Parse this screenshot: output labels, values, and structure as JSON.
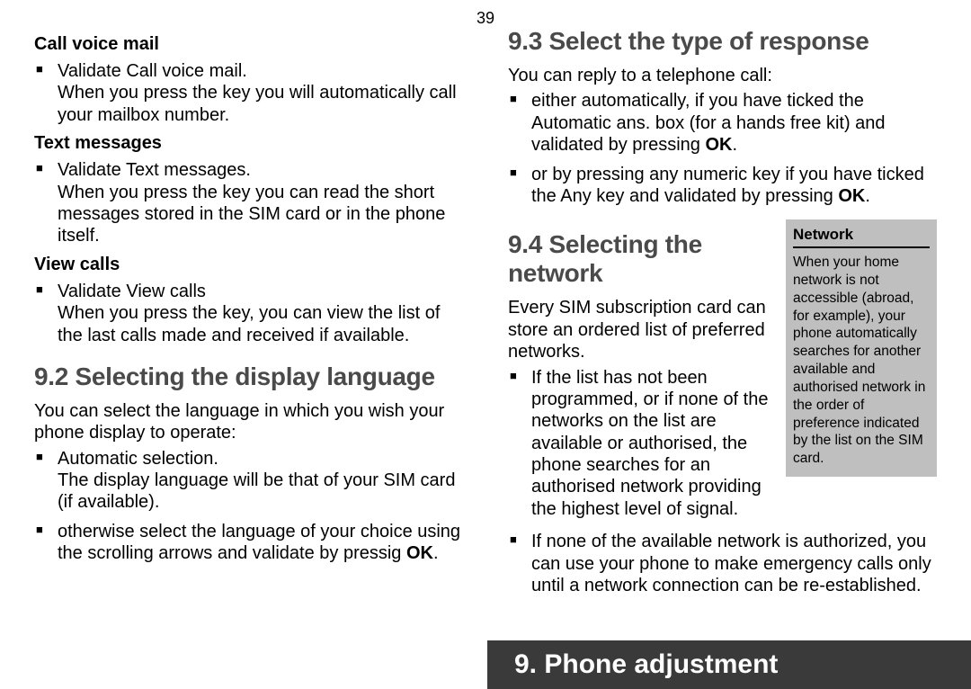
{
  "page_number": "39",
  "left": {
    "h_voicemail": "Call voice mail",
    "li_voicemail": "Validate Call voice mail.\nWhen you press the key you will automatically call your mailbox number.",
    "h_text": "Text  messages",
    "li_text": "Validate Text messages.\nWhen you press the key you can read the short messages stored in the SIM card or in the phone itself.",
    "h_view": "View calls",
    "li_view": "Validate View calls\nWhen you press the key, you can view the list of the last calls made and received if available.",
    "sec92": "9.2  Selecting the display language",
    "p92": "You can select the language in which you wish your phone display to operate:",
    "li92a": "Automatic selection.\nThe display language will be that of your SIM card (if available).",
    "li92b_pre": "otherwise select the language of your choice using the scrolling arrows and validate by pressig ",
    "li92b_ok": "OK",
    "li92b_post": "."
  },
  "right": {
    "sec93": "9.3  Select the type of response",
    "p93": "You can reply to a telephone call:",
    "li93a_pre": "either automatically, if you have ticked the Automatic ans. box (for a hands free kit) and validated by pressing ",
    "li93a_ok": "OK",
    "li93a_post": ".",
    "li93b_pre": "or by pressing any numeric key if you have ticked the Any key and validated by pressing ",
    "li93b_ok": "OK",
    "li93b_post": ".",
    "sec94": "9.4  Selecting the network",
    "p94": "Every SIM subscription card can store an ordered list of preferred networks.",
    "li94a": "If the list has not been programmed, or if none of the networks on the list are available or authorised, the phone searches for an authorised network providing the highest level of signal.",
    "li94b": "If none of the available network is authorized, you can use your phone to make emergency calls only until a network connection can be re-established.",
    "sidebar_title": "Network",
    "sidebar_body": "When your home network is not accessible (abroad, for example), your phone automatically searches for another available and authorised network in the order of preference indicated by the list on the SIM card."
  },
  "chapter": "9. Phone adjustment"
}
